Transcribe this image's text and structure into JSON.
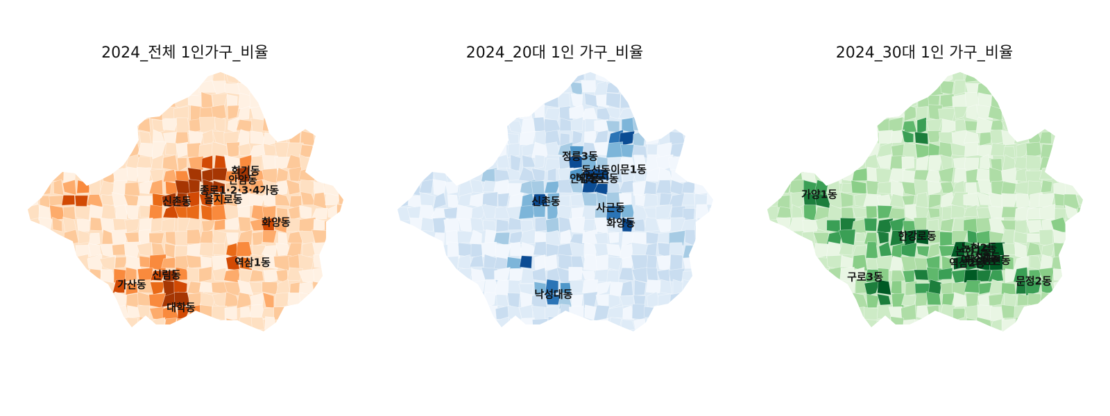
{
  "panels": [
    {
      "title": "2024_전체 1인가구_비율",
      "palette": [
        "#fff1e3",
        "#fee0c2",
        "#fdc99a",
        "#fdab6b",
        "#f98a3d",
        "#e96a17",
        "#d24a04",
        "#a63603"
      ],
      "labels": [
        "회기동",
        "안암동",
        "종로1·2·3·4가동",
        "신촌동",
        "을지로동",
        "화양동",
        "역삼1동",
        "신림동",
        "가산동",
        "대학동"
      ]
    },
    {
      "title": "2024_20대 1인 가구_비율",
      "palette": [
        "#f2f7fd",
        "#deebf7",
        "#c9ddf0",
        "#a6cbe4",
        "#7db5d9",
        "#4f97c9",
        "#2b74b6",
        "#0b4c94"
      ],
      "labels": [
        "정릉3동",
        "안암동",
        "동선동",
        "이문1동",
        "혜화동",
        "용신동",
        "신촌동",
        "사근동",
        "화양동",
        "낙성대동"
      ]
    },
    {
      "title": "2024_30대 1인 가구_비율",
      "palette": [
        "#e9f6e4",
        "#cdebc6",
        "#aedda6",
        "#8ace88",
        "#5fb86c",
        "#3a9f55",
        "#1c7e3c",
        "#005a24"
      ],
      "labels": [
        "가양1동",
        "한강로동",
        "논현1동",
        "논현2동",
        "역삼1동",
        "삼성1동",
        "역삼2동",
        "삼전동",
        "구로3동",
        "문정2동"
      ]
    }
  ]
}
